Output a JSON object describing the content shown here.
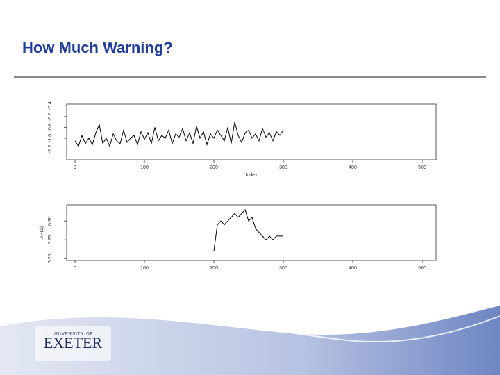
{
  "title": "How Much Warning?",
  "chart_data": [
    {
      "type": "line",
      "color": "#000000",
      "xlabel": "Index",
      "x": [
        0,
        5,
        10,
        15,
        20,
        25,
        30,
        35,
        40,
        45,
        50,
        55,
        60,
        65,
        70,
        75,
        80,
        85,
        90,
        95,
        100,
        105,
        110,
        115,
        120,
        125,
        130,
        135,
        140,
        145,
        150,
        155,
        160,
        165,
        170,
        175,
        180,
        185,
        190,
        195,
        200,
        205,
        210,
        215,
        220,
        225,
        230,
        235,
        240,
        245,
        250,
        255,
        260,
        265,
        270,
        275,
        280,
        285,
        290,
        295,
        300
      ],
      "values": [
        -1.05,
        -1.15,
        -0.95,
        -1.1,
        -1.0,
        -1.12,
        -0.9,
        -0.75,
        -1.1,
        -1.0,
        -1.15,
        -0.92,
        -1.05,
        -1.1,
        -0.85,
        -1.08,
        -1.0,
        -0.95,
        -1.12,
        -0.88,
        -1.02,
        -0.9,
        -1.1,
        -0.8,
        -1.05,
        -0.95,
        -1.0,
        -0.85,
        -1.1,
        -0.92,
        -0.98,
        -0.82,
        -1.05,
        -0.9,
        -1.1,
        -0.78,
        -1.0,
        -0.88,
        -1.12,
        -0.92,
        -1.0,
        -0.85,
        -0.95,
        -1.05,
        -0.8,
        -1.1,
        -0.7,
        -0.95,
        -1.08,
        -0.9,
        -0.85,
        -1.0,
        -0.92,
        -1.05,
        -0.82,
        -0.98,
        -0.9,
        -1.05,
        -0.88,
        -0.95,
        -0.85
      ],
      "xlim": [
        -12,
        520
      ],
      "xticks": [
        0,
        100,
        200,
        300,
        400,
        500
      ],
      "ylim": [
        -1.4,
        -0.37
      ],
      "yticks": [
        -1.2,
        {
          "value": -1.0,
          "label": "-1.0"
        },
        -0.8,
        -0.6,
        -0.4
      ]
    },
    {
      "type": "line",
      "color": "#000000",
      "ylabel": "AR(1)",
      "x": [
        200,
        205,
        210,
        215,
        220,
        225,
        230,
        235,
        240,
        245,
        250,
        255,
        260,
        265,
        270,
        275,
        280,
        285,
        290,
        295,
        300
      ],
      "values": [
        0.22,
        0.29,
        0.3,
        0.29,
        0.3,
        0.31,
        0.32,
        0.31,
        0.32,
        0.33,
        0.3,
        0.31,
        0.28,
        0.27,
        0.26,
        0.25,
        0.26,
        0.25,
        0.26,
        0.26,
        0.26
      ],
      "xlim": [
        -12,
        520
      ],
      "xticks": [
        0,
        100,
        200,
        300,
        400,
        500
      ],
      "ylim": [
        0.195,
        0.343
      ],
      "yticks": [
        {
          "value": 0.2,
          "label": "0.20"
        },
        0.25,
        {
          "value": 0.3,
          "label": "0.30"
        }
      ]
    }
  ],
  "logo": {
    "top": "UNIVERSITY OF",
    "name": "EXETER"
  }
}
